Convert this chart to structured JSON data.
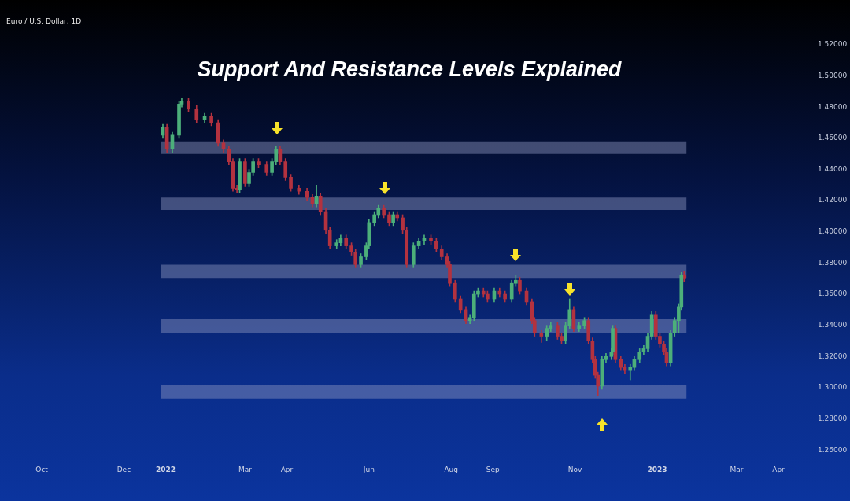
{
  "chart_data": {
    "type": "candlestick",
    "title": "Support And Resistance Levels Explained",
    "subtitle": "Euro / U.S. Dollar, 1D",
    "xlim": [
      "2021-10-01",
      "2023-04-01"
    ],
    "xticks": [
      {
        "value": "2021-10-01",
        "label": "Oct"
      },
      {
        "value": "2021-12-01",
        "label": "Dec"
      },
      {
        "value": "2022-01-01",
        "label": "2022"
      },
      {
        "value": "2022-03-01",
        "label": "Mar"
      },
      {
        "value": "2022-04-01",
        "label": "Apr"
      },
      {
        "value": "2022-06-01",
        "label": "Jun"
      },
      {
        "value": "2022-08-01",
        "label": "Aug"
      },
      {
        "value": "2022-09-01",
        "label": "Sep"
      },
      {
        "value": "2022-11-01",
        "label": "Nov"
      },
      {
        "value": "2023-01-01",
        "label": "2023"
      },
      {
        "value": "2023-03-01",
        "label": "Mar"
      },
      {
        "value": "2023-04-01",
        "label": "Apr"
      }
    ],
    "ylim": [
      1.26,
      1.52
    ],
    "yticks": [
      {
        "value": 1.26,
        "label": "1.26000"
      },
      {
        "value": 1.28,
        "label": "1.28000"
      },
      {
        "value": 1.3,
        "label": "1.30000"
      },
      {
        "value": 1.32,
        "label": "1.32000"
      },
      {
        "value": 1.34,
        "label": "1.34000"
      },
      {
        "value": 1.36,
        "label": "1.36000"
      },
      {
        "value": 1.38,
        "label": "1.38000"
      },
      {
        "value": 1.4,
        "label": "1.40000"
      },
      {
        "value": 1.42,
        "label": "1.42000"
      },
      {
        "value": 1.44,
        "label": "1.44000"
      },
      {
        "value": 1.46,
        "label": "1.46000"
      },
      {
        "value": 1.48,
        "label": "1.48000"
      },
      {
        "value": 1.5,
        "label": "1.50000"
      },
      {
        "value": 1.52,
        "label": "1.52000"
      }
    ],
    "grid": false,
    "legend": false,
    "bands": [
      {
        "axis": "y",
        "from": 1.45,
        "to": 1.458,
        "color": "#8d97c0"
      },
      {
        "axis": "y",
        "from": 1.414,
        "to": 1.422,
        "color": "#8d97c0"
      },
      {
        "axis": "y",
        "from": 1.37,
        "to": 1.379,
        "color": "#8d97c0"
      },
      {
        "axis": "y",
        "from": 1.335,
        "to": 1.344,
        "color": "#8d97c0"
      },
      {
        "axis": "y",
        "from": 1.293,
        "to": 1.302,
        "color": "#8d97c0"
      }
    ],
    "series": [
      {
        "color": "#4caf7a",
        "x": [
          "2021-12-30",
          "2022-01-06",
          "2022-01-11",
          "2022-01-13",
          "2022-01-30",
          "2022-02-25",
          "2022-03-04",
          "2022-03-07",
          "2022-03-21",
          "2022-03-24",
          "2022-04-23",
          "2022-05-08",
          "2022-05-11",
          "2022-05-26",
          "2022-05-30",
          "2022-06-01",
          "2022-06-05",
          "2022-06-08",
          "2022-06-19",
          "2022-07-04",
          "2022-07-08",
          "2022-07-12",
          "2022-08-15",
          "2022-08-18",
          "2022-08-21",
          "2022-09-02",
          "2022-09-15",
          "2022-09-18",
          "2022-10-11",
          "2022-10-14",
          "2022-10-25",
          "2022-10-28",
          "2022-11-04",
          "2022-11-08",
          "2022-11-21",
          "2022-11-24",
          "2022-11-28",
          "2022-11-29",
          "2022-12-12",
          "2022-12-15",
          "2022-12-19",
          "2022-12-22",
          "2022-12-25",
          "2022-12-28",
          "2023-01-11",
          "2023-01-14",
          "2023-01-17",
          "2023-01-19"
        ],
        "ohlc": [
          [
            1.462,
            1.469,
            1.46,
            1.467
          ],
          [
            1.453,
            1.464,
            1.451,
            1.462
          ],
          [
            1.462,
            1.484,
            1.46,
            1.482
          ],
          [
            1.482,
            1.486,
            1.48,
            1.484
          ],
          [
            1.472,
            1.476,
            1.47,
            1.474
          ],
          [
            1.427,
            1.447,
            1.425,
            1.445
          ],
          [
            1.431,
            1.44,
            1.429,
            1.438
          ],
          [
            1.438,
            1.447,
            1.436,
            1.445
          ],
          [
            1.438,
            1.447,
            1.436,
            1.445
          ],
          [
            1.445,
            1.455,
            1.443,
            1.453
          ],
          [
            1.418,
            1.43,
            1.416,
            1.423
          ],
          [
            1.391,
            1.395,
            1.389,
            1.393
          ],
          [
            1.393,
            1.398,
            1.391,
            1.396
          ],
          [
            1.379,
            1.386,
            1.377,
            1.384
          ],
          [
            1.384,
            1.393,
            1.382,
            1.391
          ],
          [
            1.391,
            1.408,
            1.389,
            1.406
          ],
          [
            1.406,
            1.413,
            1.404,
            1.411
          ],
          [
            1.411,
            1.417,
            1.409,
            1.415
          ],
          [
            1.406,
            1.413,
            1.404,
            1.411
          ],
          [
            1.379,
            1.393,
            1.377,
            1.391
          ],
          [
            1.391,
            1.396,
            1.389,
            1.394
          ],
          [
            1.394,
            1.398,
            1.392,
            1.396
          ],
          [
            1.343,
            1.347,
            1.341,
            1.345
          ],
          [
            1.345,
            1.362,
            1.343,
            1.36
          ],
          [
            1.36,
            1.364,
            1.358,
            1.362
          ],
          [
            1.357,
            1.364,
            1.355,
            1.362
          ],
          [
            1.357,
            1.369,
            1.355,
            1.367
          ],
          [
            1.367,
            1.372,
            1.365,
            1.369
          ],
          [
            1.333,
            1.34,
            1.33,
            1.338
          ],
          [
            1.338,
            1.342,
            1.336,
            1.34
          ],
          [
            1.33,
            1.342,
            1.328,
            1.34
          ],
          [
            1.34,
            1.357,
            1.338,
            1.35
          ],
          [
            1.338,
            1.342,
            1.336,
            1.34
          ],
          [
            1.34,
            1.345,
            1.338,
            1.343
          ],
          [
            1.301,
            1.32,
            1.299,
            1.318
          ],
          [
            1.318,
            1.322,
            1.316,
            1.32
          ],
          [
            1.32,
            1.325,
            1.318,
            1.323
          ],
          [
            1.323,
            1.34,
            1.321,
            1.338
          ],
          [
            1.311,
            1.315,
            1.305,
            1.313
          ],
          [
            1.313,
            1.32,
            1.311,
            1.318
          ],
          [
            1.318,
            1.325,
            1.316,
            1.323
          ],
          [
            1.323,
            1.327,
            1.321,
            1.325
          ],
          [
            1.325,
            1.335,
            1.323,
            1.333
          ],
          [
            1.333,
            1.349,
            1.331,
            1.347
          ],
          [
            1.316,
            1.337,
            1.314,
            1.335
          ],
          [
            1.335,
            1.345,
            1.333,
            1.343
          ],
          [
            1.343,
            1.354,
            1.335,
            1.352
          ],
          [
            1.352,
            1.374,
            1.35,
            1.372
          ]
        ]
      },
      {
        "color": "#b3323f",
        "x": [
          "2022-01-02",
          "2022-01-18",
          "2022-01-24",
          "2022-02-04",
          "2022-02-09",
          "2022-02-13",
          "2022-02-17",
          "2022-02-20",
          "2022-02-23",
          "2022-03-01",
          "2022-03-11",
          "2022-03-17",
          "2022-03-27",
          "2022-03-31",
          "2022-04-04",
          "2022-04-10",
          "2022-04-16",
          "2022-04-20",
          "2022-04-26",
          "2022-04-30",
          "2022-05-03",
          "2022-05-15",
          "2022-05-19",
          "2022-05-22",
          "2022-06-12",
          "2022-06-16",
          "2022-06-22",
          "2022-06-26",
          "2022-06-29",
          "2022-07-17",
          "2022-07-21",
          "2022-07-25",
          "2022-07-29",
          "2022-07-31",
          "2022-08-04",
          "2022-08-08",
          "2022-08-12",
          "2022-08-25",
          "2022-08-28",
          "2022-09-06",
          "2022-09-10",
          "2022-09-21",
          "2022-09-26",
          "2022-09-30",
          "2022-10-02",
          "2022-10-07",
          "2022-10-19",
          "2022-10-22",
          "2022-10-31",
          "2022-11-11",
          "2022-11-14",
          "2022-11-16",
          "2022-11-18",
          "2022-12-01",
          "2022-12-05",
          "2022-12-08",
          "2022-12-31",
          "2023-01-03",
          "2023-01-06",
          "2023-01-08",
          "2023-01-21"
        ],
        "ohlc": [
          [
            1.467,
            1.469,
            1.451,
            1.453
          ],
          [
            1.484,
            1.486,
            1.477,
            1.479
          ],
          [
            1.479,
            1.481,
            1.47,
            1.472
          ],
          [
            1.474,
            1.476,
            1.468,
            1.47
          ],
          [
            1.47,
            1.472,
            1.455,
            1.457
          ],
          [
            1.457,
            1.459,
            1.451,
            1.453
          ],
          [
            1.453,
            1.455,
            1.443,
            1.445
          ],
          [
            1.445,
            1.447,
            1.426,
            1.428
          ],
          [
            1.428,
            1.43,
            1.425,
            1.427
          ],
          [
            1.445,
            1.447,
            1.429,
            1.431
          ],
          [
            1.445,
            1.447,
            1.441,
            1.443
          ],
          [
            1.443,
            1.445,
            1.436,
            1.438
          ],
          [
            1.453,
            1.455,
            1.443,
            1.445
          ],
          [
            1.445,
            1.447,
            1.433,
            1.435
          ],
          [
            1.435,
            1.437,
            1.426,
            1.428
          ],
          [
            1.428,
            1.43,
            1.424,
            1.426
          ],
          [
            1.426,
            1.428,
            1.42,
            1.422
          ],
          [
            1.422,
            1.424,
            1.416,
            1.418
          ],
          [
            1.423,
            1.425,
            1.411,
            1.413
          ],
          [
            1.413,
            1.415,
            1.399,
            1.401
          ],
          [
            1.401,
            1.403,
            1.389,
            1.391
          ],
          [
            1.396,
            1.398,
            1.389,
            1.391
          ],
          [
            1.391,
            1.393,
            1.385,
            1.387
          ],
          [
            1.387,
            1.389,
            1.377,
            1.379
          ],
          [
            1.415,
            1.417,
            1.409,
            1.411
          ],
          [
            1.411,
            1.413,
            1.404,
            1.406
          ],
          [
            1.411,
            1.413,
            1.407,
            1.409
          ],
          [
            1.409,
            1.411,
            1.399,
            1.401
          ],
          [
            1.401,
            1.403,
            1.377,
            1.379
          ],
          [
            1.396,
            1.398,
            1.392,
            1.394
          ],
          [
            1.394,
            1.396,
            1.387,
            1.389
          ],
          [
            1.389,
            1.391,
            1.382,
            1.384
          ],
          [
            1.384,
            1.386,
            1.377,
            1.379
          ],
          [
            1.379,
            1.381,
            1.365,
            1.367
          ],
          [
            1.367,
            1.369,
            1.355,
            1.357
          ],
          [
            1.357,
            1.359,
            1.348,
            1.35
          ],
          [
            1.35,
            1.352,
            1.341,
            1.343
          ],
          [
            1.362,
            1.364,
            1.358,
            1.36
          ],
          [
            1.36,
            1.362,
            1.355,
            1.357
          ],
          [
            1.362,
            1.364,
            1.358,
            1.36
          ],
          [
            1.36,
            1.362,
            1.355,
            1.357
          ],
          [
            1.369,
            1.371,
            1.36,
            1.362
          ],
          [
            1.362,
            1.364,
            1.353,
            1.355
          ],
          [
            1.355,
            1.357,
            1.341,
            1.343
          ],
          [
            1.343,
            1.345,
            1.333,
            1.335
          ],
          [
            1.335,
            1.337,
            1.329,
            1.333
          ],
          [
            1.34,
            1.342,
            1.331,
            1.333
          ],
          [
            1.333,
            1.335,
            1.328,
            1.33
          ],
          [
            1.35,
            1.352,
            1.336,
            1.338
          ],
          [
            1.343,
            1.345,
            1.328,
            1.33
          ],
          [
            1.33,
            1.332,
            1.316,
            1.318
          ],
          [
            1.318,
            1.32,
            1.306,
            1.308
          ],
          [
            1.308,
            1.31,
            1.295,
            1.301
          ],
          [
            1.338,
            1.34,
            1.316,
            1.318
          ],
          [
            1.318,
            1.32,
            1.311,
            1.313
          ],
          [
            1.313,
            1.315,
            1.309,
            1.311
          ],
          [
            1.347,
            1.349,
            1.331,
            1.333
          ],
          [
            1.333,
            1.335,
            1.326,
            1.328
          ],
          [
            1.328,
            1.33,
            1.321,
            1.323
          ],
          [
            1.323,
            1.325,
            1.314,
            1.316
          ],
          [
            1.372,
            1.375,
            1.368,
            1.37
          ]
        ]
      }
    ]
  }
}
